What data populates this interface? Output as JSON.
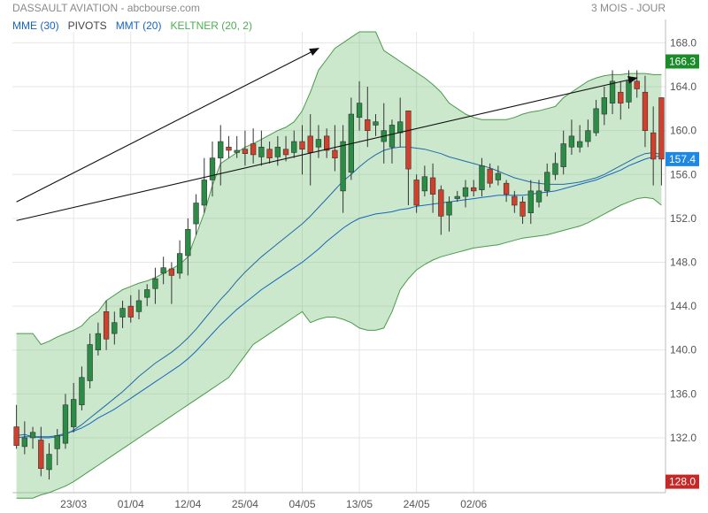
{
  "header": {
    "title": "DASSAULT AVIATION - abcbourse.com",
    "period": "3 MOIS - JOUR"
  },
  "legend": [
    {
      "label": "MME (30)",
      "color": "#1565c0"
    },
    {
      "label": "PIVOTS",
      "color": "#444444"
    },
    {
      "label": "MMT (20)",
      "color": "#1565c0"
    },
    {
      "label": "KELTNER (20, 2)",
      "color": "#4caf50"
    }
  ],
  "chart_data": {
    "type": "candlestick",
    "ylim": [
      127,
      169
    ],
    "y_ticks": [
      "168.0",
      "164.0",
      "160.0",
      "156.0",
      "152.0",
      "148.0",
      "144.0",
      "140.0",
      "136.0",
      "132.0"
    ],
    "x_ticks": [
      {
        "label": "23/03",
        "index": 7
      },
      {
        "label": "01/04",
        "index": 14
      },
      {
        "label": "12/04",
        "index": 21
      },
      {
        "label": "25/04",
        "index": 28
      },
      {
        "label": "04/05",
        "index": 35
      },
      {
        "label": "13/05",
        "index": 42
      },
      {
        "label": "24/05",
        "index": 49
      },
      {
        "label": "02/06",
        "index": 56
      }
    ],
    "candles": [
      [
        133,
        131.3,
        135,
        131
      ],
      [
        131.2,
        132,
        133.5,
        130.5
      ],
      [
        132,
        132.5,
        133,
        131
      ],
      [
        131.8,
        129.2,
        133,
        128.5
      ],
      [
        129.1,
        130.5,
        131.5,
        128.2
      ],
      [
        131,
        132.2,
        132.8,
        129.5
      ],
      [
        131.5,
        135,
        136,
        131
      ],
      [
        133,
        135.5,
        137,
        132.5
      ],
      [
        135,
        137.5,
        138.5,
        134.5
      ],
      [
        137.2,
        140.5,
        141.5,
        136.5
      ],
      [
        140,
        141.5,
        142.5,
        139.5
      ],
      [
        143.5,
        141,
        144.5,
        140
      ],
      [
        141.5,
        142.5,
        143.5,
        140.5
      ],
      [
        143,
        143.8,
        144.5,
        142
      ],
      [
        144,
        143,
        145,
        142.5
      ],
      [
        143.5,
        144.5,
        145.5,
        142.8
      ],
      [
        144.8,
        145.5,
        146,
        144
      ],
      [
        145.6,
        146.5,
        147.5,
        144.2
      ],
      [
        147,
        147.5,
        148.5,
        146
      ],
      [
        147.4,
        146.8,
        148,
        144.2
      ],
      [
        147,
        148.8,
        150,
        146.5
      ],
      [
        148.6,
        151,
        152,
        146.8
      ],
      [
        151.5,
        153.4,
        154.2,
        150.5
      ],
      [
        153.2,
        155.5,
        157.5,
        152.5
      ],
      [
        155.5,
        157.5,
        159,
        154
      ],
      [
        157.5,
        159,
        160.5,
        155
      ],
      [
        158.5,
        158.2,
        159.5,
        157.5
      ],
      [
        158,
        158.2,
        159.5,
        157.5
      ],
      [
        158.3,
        157.9,
        160,
        156.8
      ],
      [
        158.8,
        157.8,
        160.2,
        157
      ],
      [
        157.6,
        158.5,
        160,
        156.8
      ],
      [
        158.3,
        157.5,
        159,
        157
      ],
      [
        157.6,
        158.5,
        159.5,
        156.8
      ],
      [
        158.3,
        157.8,
        159.5,
        157.2
      ],
      [
        158,
        159,
        160,
        157.5
      ],
      [
        159,
        158.3,
        160.5,
        156
      ],
      [
        159.5,
        158,
        161.5,
        155
      ],
      [
        158.5,
        159.2,
        160.5,
        157.5
      ],
      [
        159.5,
        158.2,
        160.2,
        157.5
      ],
      [
        158.2,
        157.5,
        160.5,
        156.3
      ],
      [
        154.5,
        159,
        160.5,
        152.5
      ],
      [
        156.2,
        161.5,
        163,
        155.5
      ],
      [
        161.2,
        162.5,
        164.5,
        160
      ],
      [
        161,
        160,
        164,
        158.5
      ],
      [
        160.5,
        160.8,
        161.5,
        159.5
      ],
      [
        159,
        160,
        162.5,
        157
      ],
      [
        158.5,
        160.5,
        161,
        157
      ],
      [
        159.8,
        160.8,
        163,
        158.5
      ],
      [
        161.8,
        156.5,
        161,
        153.2
      ],
      [
        155.5,
        153.2,
        156,
        152.5
      ],
      [
        154.5,
        155.8,
        156.8,
        154
      ],
      [
        155.7,
        154.2,
        157,
        152.5
      ],
      [
        154.6,
        152.2,
        155,
        150.5
      ],
      [
        152.3,
        153.5,
        154,
        150.8
      ],
      [
        153.8,
        154,
        154.5,
        153.5
      ],
      [
        154,
        154.8,
        155.5,
        153
      ],
      [
        154.8,
        154.5,
        155.5,
        154
      ],
      [
        154.6,
        156.8,
        157.5,
        154
      ],
      [
        156.5,
        155.2,
        157,
        154.8
      ],
      [
        155.5,
        156.1,
        156.8,
        155
      ],
      [
        155.2,
        154.2,
        155.5,
        153.5
      ],
      [
        154,
        153.2,
        154.5,
        152.5
      ],
      [
        153.5,
        152.2,
        154,
        151.5
      ],
      [
        152.5,
        154.5,
        155.5,
        151.5
      ],
      [
        153.5,
        154.5,
        155.5,
        153
      ],
      [
        154.5,
        156.2,
        157,
        154
      ],
      [
        156,
        157,
        158,
        155.5
      ],
      [
        156.7,
        158.8,
        160,
        156
      ],
      [
        158.5,
        159.5,
        161,
        157.8
      ],
      [
        158.5,
        159,
        160.5,
        158
      ],
      [
        159,
        160,
        161,
        158.5
      ],
      [
        159.8,
        162,
        162.8,
        159.5
      ],
      [
        161.5,
        163,
        164,
        160.5
      ],
      [
        162.5,
        164.5,
        165.5,
        161.5
      ],
      [
        163.5,
        162.5,
        164.5,
        161
      ],
      [
        162.6,
        164.5,
        165.5,
        162
      ],
      [
        164.5,
        163.8,
        165.5,
        163
      ],
      [
        163.5,
        160,
        165,
        158.5
      ],
      [
        159.8,
        157.4,
        162.2,
        155
      ],
      [
        163,
        157.4,
        163,
        155
      ]
    ],
    "keltner_upper": [
      141.5,
      141.5,
      141.5,
      140.5,
      140.8,
      141.2,
      141.5,
      141.8,
      142.2,
      143,
      143.5,
      144.5,
      145,
      145.5,
      145.8,
      146.1,
      146.3,
      146.6,
      147,
      147.4,
      147.8,
      148.5,
      150.5,
      152.5,
      155,
      157,
      157.5,
      158,
      158.5,
      158.8,
      159.2,
      159.6,
      160,
      160.3,
      160.8,
      161.8,
      163.5,
      165.5,
      166.5,
      167.5,
      168,
      168.5,
      169,
      169,
      169,
      167.3,
      166.8,
      166.3,
      165.8,
      165.3,
      164.8,
      164.2,
      163.5,
      162.5,
      162,
      161.5,
      161.2,
      161,
      161,
      161,
      161,
      161.2,
      161.5,
      161.7,
      161.8,
      162,
      162.2,
      163,
      163.5,
      164,
      164.5,
      164.8,
      165,
      165.1,
      165.1,
      165.2,
      165.2,
      165.2,
      165.1,
      165.1
    ],
    "keltner_lower": [
      126.5,
      126.5,
      126.5,
      126.8,
      127,
      127.3,
      127.6,
      128,
      128.5,
      129,
      129.5,
      130,
      130.5,
      131,
      131.5,
      132,
      132.5,
      133,
      133.5,
      134,
      134.5,
      135,
      135.5,
      136,
      136.5,
      137,
      137.5,
      138.5,
      139.5,
      140.5,
      141,
      141.5,
      142,
      142.5,
      143,
      143.5,
      142.5,
      142.8,
      143,
      143,
      142.8,
      142.5,
      142,
      141.8,
      141.8,
      142,
      143.5,
      145.5,
      146.5,
      147.3,
      147.8,
      148.2,
      148.5,
      148.7,
      148.9,
      149.1,
      149.3,
      149.4,
      149.5,
      149.6,
      149.8,
      150,
      150.2,
      150.3,
      150.4,
      150.5,
      150.7,
      150.9,
      151.1,
      151.3,
      151.6,
      152,
      152.4,
      152.8,
      153.2,
      153.5,
      153.8,
      153.9,
      153.8,
      153.2
    ],
    "mme30": [
      132,
      132.1,
      132.1,
      132.1,
      132.1,
      132.2,
      132.4,
      132.6,
      132.9,
      133.3,
      133.8,
      134.2,
      134.6,
      135.1,
      135.6,
      136.1,
      136.6,
      137.1,
      137.6,
      138.1,
      138.6,
      139.2,
      139.9,
      140.7,
      141.5,
      142.3,
      143,
      143.7,
      144.3,
      144.9,
      145.5,
      146,
      146.5,
      147,
      147.5,
      148,
      148.6,
      149.2,
      149.9,
      150.5,
      151.1,
      151.6,
      152,
      152.2,
      152.4,
      152.5,
      152.6,
      152.8,
      152.9,
      153.1,
      153.2,
      153.3,
      153.4,
      153.5,
      153.6,
      153.7,
      153.8,
      153.9,
      154,
      154.1,
      154.1,
      154.1,
      154.1,
      154.2,
      154.3,
      154.4,
      154.5,
      154.7,
      154.9,
      155.1,
      155.3,
      155.5,
      155.8,
      156.1,
      156.4,
      156.8,
      157.1,
      157.4,
      157.6,
      157.7
    ],
    "mmt20": [
      132.2,
      132.3,
      132.1,
      132,
      132,
      132.1,
      132.3,
      132.7,
      133.2,
      133.8,
      134.4,
      135,
      135.6,
      136.2,
      136.9,
      137.6,
      138.2,
      138.8,
      139.3,
      139.8,
      140.4,
      141.1,
      141.9,
      142.8,
      143.7,
      144.6,
      145.4,
      146.3,
      147.1,
      147.8,
      148.5,
      149.1,
      149.7,
      150.3,
      150.9,
      151.5,
      152.2,
      153,
      153.8,
      154.6,
      155.4,
      156,
      156.7,
      157.3,
      157.8,
      158.2,
      158.4,
      158.5,
      158.5,
      158.4,
      158.3,
      158.1,
      157.9,
      157.6,
      157.4,
      157.2,
      157,
      156.8,
      156.6,
      156.3,
      156,
      155.7,
      155.5,
      155.3,
      155.2,
      155.1,
      155.1,
      155.1,
      155.2,
      155.3,
      155.5,
      155.7,
      156,
      156.4,
      156.8,
      157.2,
      157.6,
      157.9,
      158,
      157.8
    ],
    "trendlines": [
      {
        "from": [
          0,
          153.5
        ],
        "to": [
          37,
          167.5
        ]
      },
      {
        "from": [
          0,
          151.8
        ],
        "to": [
          76,
          164.8
        ]
      }
    ],
    "badges": [
      {
        "value": "166.3",
        "color": "#1b8c2a"
      },
      {
        "value": "157.4",
        "color": "#1e88e5"
      },
      {
        "value": "128.0",
        "color": "#c62828"
      }
    ],
    "grid": true
  }
}
